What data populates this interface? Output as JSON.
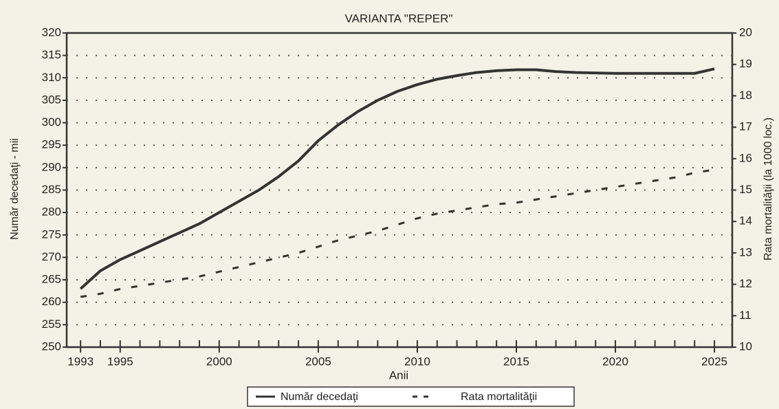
{
  "chart_data": {
    "type": "line",
    "title": "VARIANTA \"REPER\"",
    "x_label": "Anii",
    "y_label": "Număr decedaţi - mii",
    "y2_label": "Rata mortalităţii (la 1000 loc.)",
    "x": [
      1993,
      1994,
      1995,
      1996,
      1997,
      1998,
      1999,
      2000,
      2001,
      2002,
      2003,
      2004,
      2005,
      2006,
      2007,
      2008,
      2009,
      2010,
      2011,
      2012,
      2013,
      2014,
      2015,
      2016,
      2017,
      2018,
      2019,
      2020,
      2021,
      2022,
      2023,
      2024,
      2025
    ],
    "series": [
      {
        "name": "Număr decedaţi",
        "color": "#333333",
        "style": "solid",
        "values": [
          263,
          267,
          269.5,
          271.5,
          273.5,
          275.5,
          277.5,
          280,
          282.5,
          285,
          288,
          291.5,
          296,
          299.5,
          302.5,
          305,
          307,
          308.5,
          309.7,
          310.5,
          311.2,
          311.6,
          311.8,
          311.8,
          311.4,
          311.2,
          311.1,
          311,
          311,
          311,
          311,
          311,
          312
        ]
      },
      {
        "name": "Rata mortalităţii",
        "color": "#333333",
        "style": "dashed",
        "axis": "y2",
        "values": [
          11.6,
          11.7,
          11.85,
          11.95,
          12.05,
          12.15,
          12.25,
          12.4,
          12.55,
          12.7,
          12.85,
          13.0,
          13.2,
          13.4,
          13.55,
          13.7,
          13.9,
          14.1,
          14.25,
          14.35,
          14.45,
          14.55,
          14.6,
          14.7,
          14.8,
          14.9,
          15.0,
          15.1,
          15.2,
          15.3,
          15.4,
          15.55,
          15.65
        ]
      }
    ],
    "xlim": [
      1992.3,
      2025.9
    ],
    "xticks": [
      1993,
      1995,
      2000,
      2005,
      2010,
      2015,
      2020,
      2025
    ],
    "ylim": [
      250,
      320
    ],
    "yticks": [
      250,
      255,
      260,
      265,
      270,
      275,
      280,
      285,
      290,
      295,
      300,
      305,
      310,
      315,
      320
    ],
    "y2lim": [
      10,
      20
    ],
    "y2ticks": [
      10,
      11,
      12,
      13,
      14,
      15,
      16,
      17,
      18,
      19,
      20
    ],
    "grid": true,
    "legend": "bottom"
  }
}
